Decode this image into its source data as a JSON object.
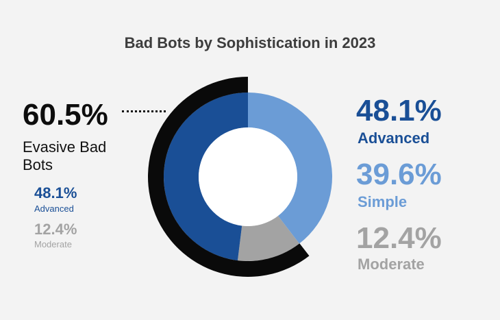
{
  "colors": {
    "advanced": "#1a4f96",
    "simple": "#6b9cd6",
    "moderate": "#a3a3a3",
    "evasive": "#0a0a0a",
    "background": "#f3f3f3"
  },
  "chart_data": {
    "type": "pie",
    "title": "Bad Bots by Sophistication in 2023",
    "series": [
      {
        "name": "Advanced",
        "value": 48.1,
        "label": "48.1%"
      },
      {
        "name": "Simple",
        "value": 39.6,
        "label": "39.6%"
      },
      {
        "name": "Moderate",
        "value": 12.4,
        "label": "12.4%"
      }
    ],
    "outer_ring": {
      "name": "Evasive Bad Bots",
      "value": 60.5,
      "label": "60.5%"
    }
  },
  "left_panel": {
    "evasive_pct": "60.5%",
    "evasive_label": "Evasive Bad Bots",
    "advanced_pct": "48.1%",
    "advanced_label": "Advanced",
    "moderate_pct": "12.4%",
    "moderate_label": "Moderate"
  },
  "right_panel": {
    "advanced_pct": "48.1%",
    "advanced_label": "Advanced",
    "simple_pct": "39.6%",
    "simple_label": "Simple",
    "moderate_pct": "12.4%",
    "moderate_label": "Moderate"
  }
}
